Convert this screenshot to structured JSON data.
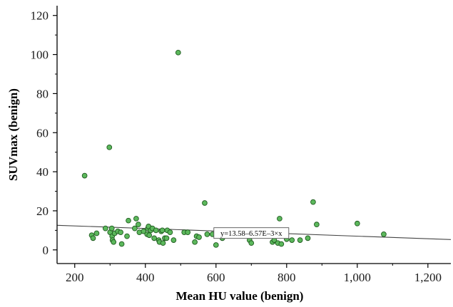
{
  "chart_data": {
    "type": "scatter",
    "title": "",
    "xlabel": "Mean HU value (benign)",
    "ylabel": "SUVmax (benign)",
    "xlim": [
      150,
      1265
    ],
    "ylim": [
      -7,
      125
    ],
    "x_ticks": [
      200,
      400,
      600,
      800,
      1000,
      1200
    ],
    "x_tick_labels": [
      "200",
      "400",
      "600",
      "800",
      "1,000",
      "1,200"
    ],
    "y_ticks": [
      0,
      20,
      40,
      60,
      80,
      100,
      120
    ],
    "y_tick_labels": [
      "0",
      "20",
      "40",
      "60",
      "80",
      "100",
      "120"
    ],
    "grid": false,
    "marker_color": "#5cb85c",
    "marker_edge": "#1f5a1f",
    "fit_line": {
      "label": "y=13.58–6.57E–3×x",
      "intercept": 13.58,
      "slope": -0.00657,
      "color": "#444444"
    },
    "series": [
      {
        "points": [
          [
            228,
            38
          ],
          [
            248,
            7.5
          ],
          [
            252,
            6
          ],
          [
            262,
            8.5
          ],
          [
            287,
            11
          ],
          [
            298,
            52.5
          ],
          [
            300,
            9
          ],
          [
            305,
            11
          ],
          [
            306,
            7
          ],
          [
            307,
            5
          ],
          [
            310,
            4
          ],
          [
            313,
            8.5
          ],
          [
            322,
            9.5
          ],
          [
            330,
            9
          ],
          [
            333,
            3
          ],
          [
            348,
            7
          ],
          [
            352,
            15
          ],
          [
            370,
            11
          ],
          [
            374,
            16
          ],
          [
            380,
            13
          ],
          [
            383,
            9
          ],
          [
            395,
            9.5
          ],
          [
            405,
            8
          ],
          [
            407,
            11
          ],
          [
            409,
            12
          ],
          [
            411,
            7.5
          ],
          [
            415,
            10
          ],
          [
            420,
            11
          ],
          [
            425,
            6
          ],
          [
            430,
            10
          ],
          [
            438,
            5
          ],
          [
            440,
            4
          ],
          [
            445,
            9.5
          ],
          [
            448,
            10
          ],
          [
            450,
            3.5
          ],
          [
            455,
            6
          ],
          [
            460,
            6
          ],
          [
            462,
            10
          ],
          [
            470,
            9
          ],
          [
            480,
            5
          ],
          [
            493,
            101
          ],
          [
            510,
            9
          ],
          [
            520,
            9
          ],
          [
            540,
            4
          ],
          [
            545,
            7
          ],
          [
            552,
            6.5
          ],
          [
            568,
            24
          ],
          [
            575,
            8
          ],
          [
            590,
            8
          ],
          [
            600,
            2.5
          ],
          [
            618,
            6
          ],
          [
            695,
            5
          ],
          [
            700,
            3.5
          ],
          [
            760,
            4
          ],
          [
            765,
            5
          ],
          [
            775,
            3.5
          ],
          [
            780,
            16
          ],
          [
            785,
            3
          ],
          [
            800,
            5.5
          ],
          [
            815,
            5
          ],
          [
            838,
            5
          ],
          [
            860,
            6
          ],
          [
            875,
            24.5
          ],
          [
            885,
            13
          ],
          [
            1000,
            13.5
          ],
          [
            1075,
            8
          ]
        ]
      }
    ]
  }
}
